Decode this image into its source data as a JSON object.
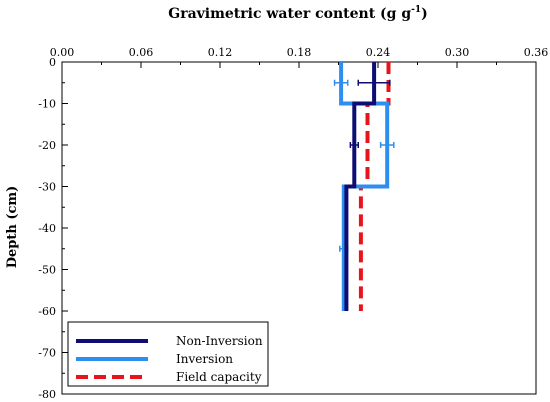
{
  "chart_data": {
    "type": "line",
    "title": "Gravimetric water content (g g",
    "title_superscript": "-1",
    "title_suffix": ")",
    "ylabel": "Depth (cm)",
    "xlim": [
      0,
      0.36
    ],
    "ylim": [
      -80,
      0
    ],
    "x_ticks": [
      "0.00",
      "0.06",
      "0.12",
      "0.18",
      "0.24",
      "0.30",
      "0.36"
    ],
    "x_tick_values": [
      0,
      0.06,
      0.12,
      0.18,
      0.24,
      0.3,
      0.36
    ],
    "y_ticks": [
      "0",
      "-10",
      "-20",
      "-30",
      "-40",
      "-50",
      "-60",
      "-70",
      "-80"
    ],
    "y_tick_values": [
      0,
      -10,
      -20,
      -30,
      -40,
      -50,
      -60,
      -70,
      -80
    ],
    "x_axis_position": "top",
    "grid": false,
    "legend_position": "bottom-left",
    "series": [
      {
        "name": "Non-Inversion",
        "color": "#0d0d73",
        "dash": "solid",
        "x": [
          0.237,
          0.237,
          0.222,
          0.222,
          0.216,
          0.216
        ],
        "y": [
          0,
          -10,
          -10,
          -30,
          -30,
          -60
        ],
        "error_bars": [
          {
            "x": 0.237,
            "y": -5,
            "err": 0.012
          },
          {
            "x": 0.222,
            "y": -20,
            "err": 0.003
          }
        ]
      },
      {
        "name": "Inversion",
        "color": "#2e8ef0",
        "dash": "solid",
        "x": [
          0.212,
          0.212,
          0.247,
          0.247,
          0.214,
          0.214
        ],
        "y": [
          0,
          -10,
          -10,
          -30,
          -30,
          -60
        ],
        "error_bars": [
          {
            "x": 0.212,
            "y": -5,
            "err": 0.005
          },
          {
            "x": 0.247,
            "y": -20,
            "err": 0.005
          },
          {
            "x": 0.214,
            "y": -45,
            "err": 0.003
          }
        ]
      },
      {
        "name": "Field capacity",
        "color": "#e8141b",
        "dash": "dashed",
        "x": [
          0.248,
          0.248,
          0.232,
          0.232,
          0.227,
          0.227
        ],
        "y": [
          0,
          -10,
          -10,
          -30,
          -30,
          -60
        ],
        "error_bars": []
      }
    ]
  }
}
